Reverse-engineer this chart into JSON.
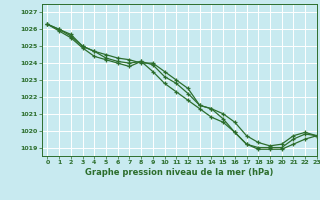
{
  "title": "Graphe pression niveau de la mer (hPa)",
  "background_color": "#c8eaf0",
  "grid_color": "#ffffff",
  "line_color": "#2d6e2d",
  "marker_color": "#2d6e2d",
  "xlim": [
    -0.5,
    23
  ],
  "ylim": [
    1018.5,
    1027.5
  ],
  "yticks": [
    1019,
    1020,
    1021,
    1022,
    1023,
    1024,
    1025,
    1026,
    1027
  ],
  "xticks": [
    0,
    1,
    2,
    3,
    4,
    5,
    6,
    7,
    8,
    9,
    10,
    11,
    12,
    13,
    14,
    15,
    16,
    17,
    18,
    19,
    20,
    21,
    22,
    23
  ],
  "series": [
    [
      1026.3,
      1026.0,
      1025.7,
      1025.0,
      1024.7,
      1024.5,
      1024.3,
      1024.2,
      1024.0,
      1024.0,
      1023.5,
      1023.0,
      1022.5,
      1021.5,
      1021.3,
      1020.7,
      1019.9,
      1019.2,
      1019.0,
      1019.0,
      1019.0,
      1019.5,
      1019.8,
      1019.7
    ],
    [
      1026.3,
      1026.0,
      1025.6,
      1025.0,
      1024.7,
      1024.3,
      1024.1,
      1024.0,
      1024.1,
      1023.9,
      1023.2,
      1022.8,
      1022.2,
      1021.5,
      1021.3,
      1021.0,
      1020.5,
      1019.7,
      1019.3,
      1019.1,
      1019.2,
      1019.7,
      1019.9,
      1019.7
    ],
    [
      1026.3,
      1025.9,
      1025.5,
      1024.9,
      1024.4,
      1024.2,
      1024.0,
      1023.8,
      1024.1,
      1023.5,
      1022.8,
      1022.3,
      1021.8,
      1021.3,
      1020.8,
      1020.5,
      1019.9,
      1019.2,
      1018.9,
      1018.9,
      1018.9,
      1019.2,
      1019.5,
      1019.7
    ]
  ],
  "ylabel_fontsize": 5.0,
  "xlabel_fontsize": 6.0,
  "tick_fontsize": 4.5,
  "linewidth": 0.9,
  "markersize": 3.0
}
